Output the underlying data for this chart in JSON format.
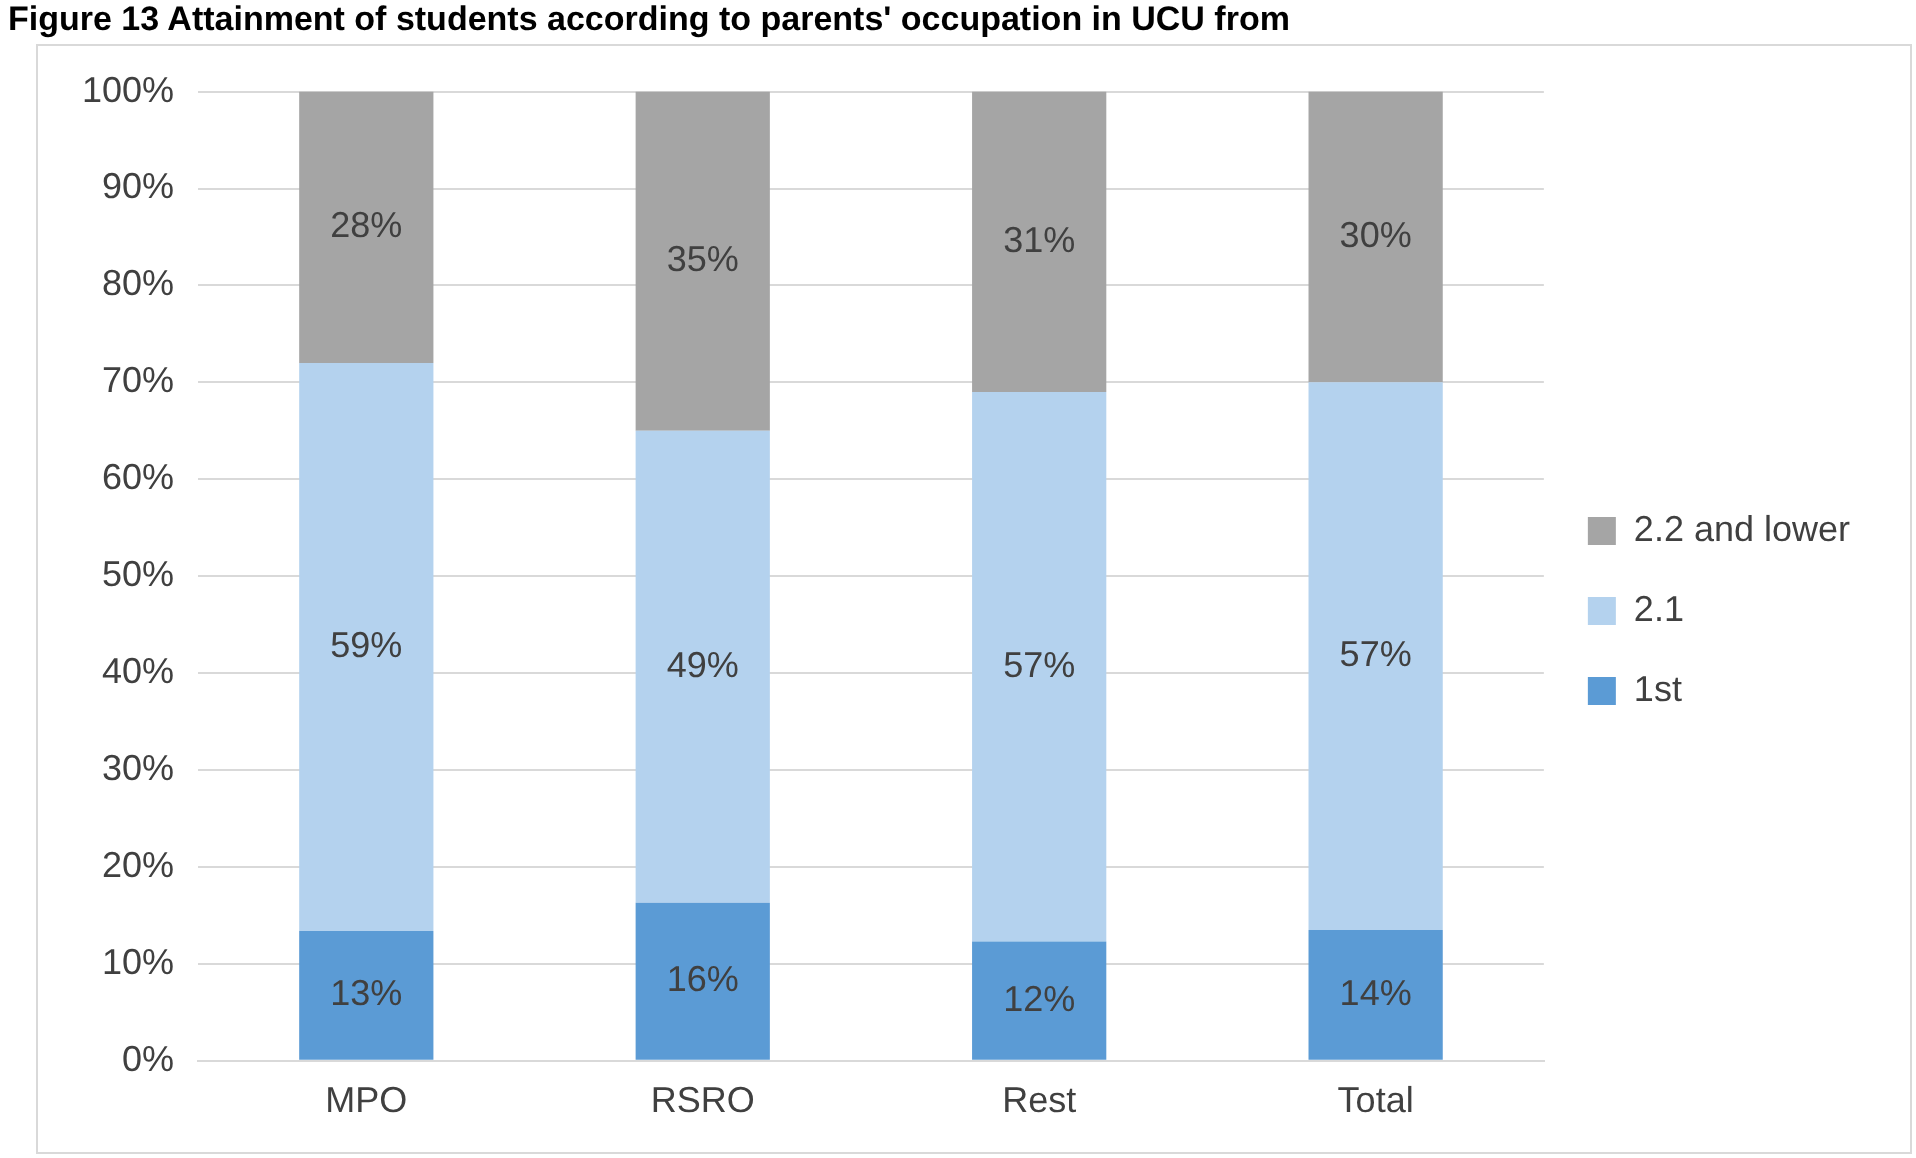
{
  "chart_data": {
    "type": "bar",
    "stacked": true,
    "title": "Figure 13 Attainment of students according to parents' occupation in UCU from",
    "categories": [
      "MPO",
      "RSRO",
      "Rest",
      "Total"
    ],
    "series": [
      {
        "name": "1st",
        "color": "#5b9bd5",
        "values": [
          13.4,
          16.3,
          12.3,
          13.5
        ],
        "value_labels": [
          "13%",
          "16%",
          "12%",
          "14%"
        ]
      },
      {
        "name": "2.1",
        "color": "#b4d2ee",
        "values": [
          58.6,
          48.7,
          56.7,
          56.5
        ],
        "value_labels": [
          "59%",
          "49%",
          "57%",
          "57%"
        ]
      },
      {
        "name": "2.2 and lower",
        "color": "#a5a5a5",
        "values": [
          28,
          35,
          31,
          30
        ],
        "value_labels": [
          "28%",
          "35%",
          "31%",
          "30%"
        ]
      }
    ],
    "ylim": [
      0,
      100
    ],
    "yticks": [
      {
        "value": 0,
        "label": "0%"
      },
      {
        "value": 10,
        "label": "10%"
      },
      {
        "value": 20,
        "label": "20%"
      },
      {
        "value": 30,
        "label": "30%"
      },
      {
        "value": 40,
        "label": "40%"
      },
      {
        "value": 50,
        "label": "50%"
      },
      {
        "value": 60,
        "label": "60%"
      },
      {
        "value": 70,
        "label": "70%"
      },
      {
        "value": 80,
        "label": "80%"
      },
      {
        "value": 90,
        "label": "90%"
      },
      {
        "value": 100,
        "label": "100%"
      }
    ],
    "grid": "y",
    "legend": "right"
  }
}
